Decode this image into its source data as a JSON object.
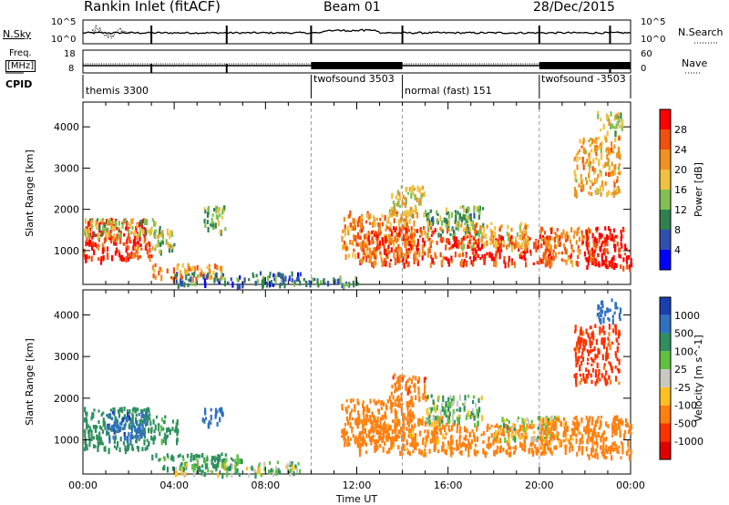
{
  "header": {
    "title": "Rankin Inlet (fitACF)",
    "beam": "Beam 01",
    "date": "28/Dec/2015"
  },
  "nsky_panel": {
    "label": "N.Sky",
    "left_ticks": [
      "10^5",
      "10^0"
    ],
    "right_ticks": [
      "10^5",
      "10^0"
    ],
    "right_label": "N.Search"
  },
  "freq_panel": {
    "label_line1": "Freq.",
    "label_line2": "[MHz]",
    "left_ticks": [
      "18",
      "8"
    ],
    "right_ticks": [
      "60",
      "0"
    ],
    "right_label": "Nave"
  },
  "cpid_panel": {
    "label": "CPID",
    "segments": [
      {
        "name": "themis 3300",
        "start_hour": 0
      },
      {
        "name": "twofsound 3503",
        "start_hour": 10
      },
      {
        "name": "normal (fast) 151",
        "start_hour": 14
      },
      {
        "name": "twofsound -3503",
        "start_hour": 20
      }
    ]
  },
  "x_axis": {
    "label": "Time UT",
    "range_hours": [
      0,
      24
    ],
    "ticks": [
      "00:00",
      "04:00",
      "08:00",
      "12:00",
      "16:00",
      "20:00",
      "00:00"
    ]
  },
  "power_panel": {
    "ylabel": "Slant Range [km]",
    "yticks": [
      "1000",
      "2000",
      "3000",
      "4000"
    ],
    "ylim_km": [
      180,
      4600
    ],
    "colorbar_label": "Power [dB]",
    "colorbar_ticks": [
      "4",
      "8",
      "12",
      "16",
      "20",
      "24",
      "28"
    ],
    "colors": [
      "#0000ff",
      "#3050b0",
      "#308050",
      "#80c050",
      "#f0c040",
      "#f09020",
      "#f05010",
      "#ff0000"
    ]
  },
  "velocity_panel": {
    "ylabel": "Slant Range [km]",
    "yticks": [
      "1000",
      "2000",
      "3000",
      "4000"
    ],
    "ylim_km": [
      180,
      4600
    ],
    "colorbar_label": "Velocity [m s^-1]",
    "colorbar_ticks": [
      "1000",
      "500",
      "100",
      "25",
      "-25",
      "-100",
      "-500",
      "-1000"
    ],
    "colors": [
      "#1a40b0",
      "#3070c0",
      "#2f8f5f",
      "#60c040",
      "#c8c8c0",
      "#ffc020",
      "#ff8010",
      "#ff3000",
      "#e00000"
    ]
  },
  "chart_data": [
    {
      "type": "heatmap",
      "name_source": "power_panel",
      "xlabel": "Time UT",
      "ylabel": "Slant Range [km]",
      "xlim_hours": [
        0,
        24
      ],
      "ylim_km": [
        180,
        4600
      ],
      "value_units": "dB",
      "regions": [
        {
          "t0": 0.0,
          "t1": 3.0,
          "r0": 800,
          "r1": 1800,
          "v": 26
        },
        {
          "t0": 0.0,
          "t1": 3.2,
          "r0": 1400,
          "r1": 1800,
          "v": 14
        },
        {
          "t0": 3.0,
          "t1": 4.0,
          "r0": 1000,
          "r1": 1600,
          "v": 14
        },
        {
          "t0": 3.0,
          "t1": 6.2,
          "r0": 350,
          "r1": 700,
          "v": 20
        },
        {
          "t0": 5.2,
          "t1": 6.2,
          "r0": 1500,
          "r1": 2100,
          "v": 12
        },
        {
          "t0": 4.0,
          "t1": 9.5,
          "r0": 200,
          "r1": 500,
          "v": 6
        },
        {
          "t0": 9.5,
          "t1": 12.2,
          "r0": 200,
          "r1": 400,
          "v": 8
        },
        {
          "t0": 11.3,
          "t1": 14.5,
          "r0": 900,
          "r1": 2000,
          "v": 20
        },
        {
          "t0": 12.0,
          "t1": 16.0,
          "r0": 700,
          "r1": 1600,
          "v": 24
        },
        {
          "t0": 13.4,
          "t1": 15.0,
          "r0": 1900,
          "r1": 2600,
          "v": 16
        },
        {
          "t0": 15.0,
          "t1": 17.5,
          "r0": 1400,
          "r1": 2100,
          "v": 10
        },
        {
          "t0": 16.0,
          "t1": 20.5,
          "r0": 700,
          "r1": 1400,
          "v": 26
        },
        {
          "t0": 16.5,
          "t1": 19.5,
          "r0": 1100,
          "r1": 1700,
          "v": 18
        },
        {
          "t0": 20.0,
          "t1": 22.5,
          "r0": 700,
          "r1": 1600,
          "v": 22
        },
        {
          "t0": 22.0,
          "t1": 24.0,
          "r0": 600,
          "r1": 1600,
          "v": 28
        },
        {
          "t0": 21.5,
          "t1": 23.5,
          "r0": 2400,
          "r1": 3800,
          "v": 18
        },
        {
          "t0": 22.5,
          "t1": 23.6,
          "r0": 3900,
          "r1": 4400,
          "v": 14
        }
      ]
    },
    {
      "type": "heatmap",
      "name_source": "velocity_panel",
      "xlabel": "Time UT",
      "ylabel": "Slant Range [km]",
      "xlim_hours": [
        0,
        24
      ],
      "ylim_km": [
        180,
        4600
      ],
      "value_units": "m s^-1",
      "regions": [
        {
          "t0": 0.0,
          "t1": 3.0,
          "r0": 800,
          "r1": 1800,
          "v": 300
        },
        {
          "t0": 1.0,
          "t1": 2.8,
          "r0": 1000,
          "r1": 1700,
          "v": 900
        },
        {
          "t0": 3.0,
          "t1": 4.2,
          "r0": 1000,
          "r1": 1600,
          "v": 200
        },
        {
          "t0": 5.2,
          "t1": 6.2,
          "r0": 1400,
          "r1": 1800,
          "v": 900
        },
        {
          "t0": 3.0,
          "t1": 7.0,
          "r0": 350,
          "r1": 700,
          "v": 150
        },
        {
          "t0": 4.0,
          "t1": 9.5,
          "r0": 200,
          "r1": 500,
          "v": 60
        },
        {
          "t0": 11.3,
          "t1": 14.5,
          "r0": 900,
          "r1": 2000,
          "v": -300
        },
        {
          "t0": 12.0,
          "t1": 16.0,
          "r0": 700,
          "r1": 1600,
          "v": -200
        },
        {
          "t0": 13.4,
          "t1": 15.0,
          "r0": 1900,
          "r1": 2600,
          "v": -400
        },
        {
          "t0": 15.0,
          "t1": 17.5,
          "r0": 1400,
          "r1": 2100,
          "v": 50
        },
        {
          "t0": 16.0,
          "t1": 20.5,
          "r0": 700,
          "r1": 1400,
          "v": -300
        },
        {
          "t0": 18.0,
          "t1": 20.8,
          "r0": 1000,
          "r1": 1600,
          "v": 0
        },
        {
          "t0": 20.0,
          "t1": 22.5,
          "r0": 700,
          "r1": 1600,
          "v": -200
        },
        {
          "t0": 22.0,
          "t1": 24.0,
          "r0": 600,
          "r1": 1600,
          "v": -300
        },
        {
          "t0": 21.5,
          "t1": 23.5,
          "r0": 2400,
          "r1": 3800,
          "v": -600
        },
        {
          "t0": 22.5,
          "t1": 23.6,
          "r0": 3900,
          "r1": 4400,
          "v": 700
        }
      ]
    }
  ]
}
